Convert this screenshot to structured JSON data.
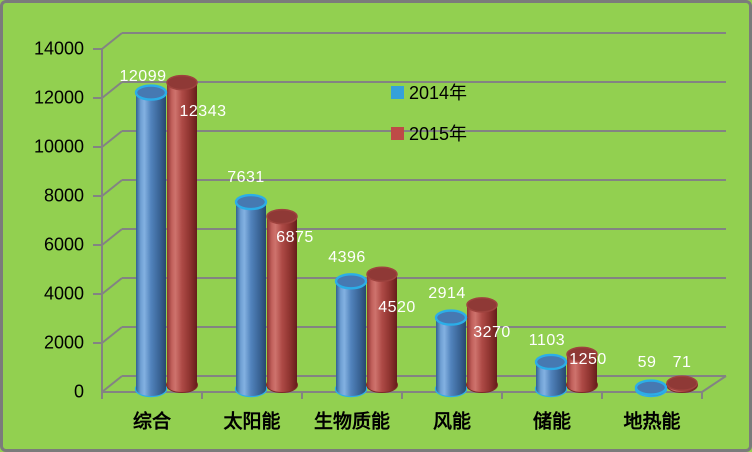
{
  "chart_data": {
    "type": "bar",
    "subtype": "3d-cylinder-clustered",
    "title": "",
    "categories": [
      "综合",
      "太阳能",
      "生物质能",
      "风能",
      "储能",
      "地热能"
    ],
    "series": [
      {
        "name": "2014年",
        "color": "#4F81BD",
        "legend_color": "#35A1DB",
        "values": [
          12099,
          7631,
          4396,
          2914,
          1103,
          59
        ]
      },
      {
        "name": "2015年",
        "color": "#C0504D",
        "legend_color": "#BE4B47",
        "values": [
          12343,
          6875,
          4520,
          3270,
          1250,
          71
        ]
      }
    ],
    "yticks": [
      0,
      2000,
      4000,
      6000,
      8000,
      10000,
      12000,
      14000
    ],
    "ylim": [
      0,
      14000
    ],
    "ytick_step": 2000,
    "grid": true,
    "data_labels": true,
    "legend_position": "upper-center",
    "colors": {
      "background": "#92D050",
      "grid": "#838383",
      "data_label": "#FFFFFF",
      "axis_text": "#000000"
    }
  }
}
